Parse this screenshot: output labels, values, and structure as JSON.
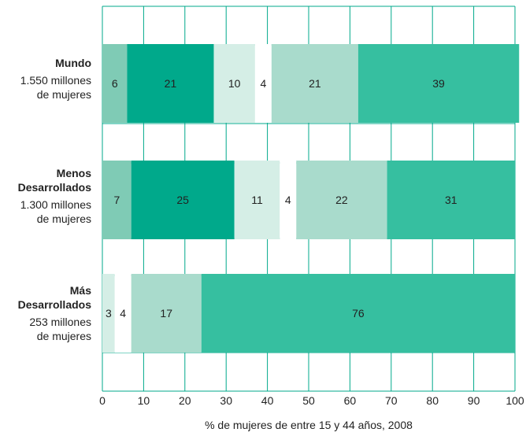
{
  "chart_data": {
    "type": "bar",
    "orientation": "horizontal",
    "stacked": true,
    "xlabel": "% de mujeres de entre 15 y 44 años, 2008",
    "xlim": [
      0,
      100
    ],
    "xticks": [
      "0",
      "10",
      "20",
      "30",
      "40",
      "50",
      "60",
      "70",
      "80",
      "90",
      "100"
    ],
    "grid": true,
    "colors": [
      "#7fcbb5",
      "#00a98b",
      "#d5eee6",
      "#ffffff",
      "#a9dbcc",
      "#36bfa0"
    ],
    "categories": [
      {
        "name_lines": [
          "Mundo"
        ],
        "sub_lines": [
          "1.550 millones",
          "de mujeres"
        ]
      },
      {
        "name_lines": [
          "Menos",
          "Desarrollados"
        ],
        "sub_lines": [
          "1.300 millones",
          "de mujeres"
        ]
      },
      {
        "name_lines": [
          "Más",
          "Desarrollados"
        ],
        "sub_lines": [
          "253 millones",
          "de mujeres"
        ]
      }
    ],
    "series": [
      {
        "values": [
          6,
          7,
          0
        ]
      },
      {
        "values": [
          21,
          25,
          0
        ]
      },
      {
        "values": [
          10,
          11,
          3
        ]
      },
      {
        "values": [
          4,
          4,
          4
        ]
      },
      {
        "values": [
          21,
          22,
          17
        ]
      },
      {
        "values": [
          39,
          31,
          76
        ]
      }
    ]
  }
}
